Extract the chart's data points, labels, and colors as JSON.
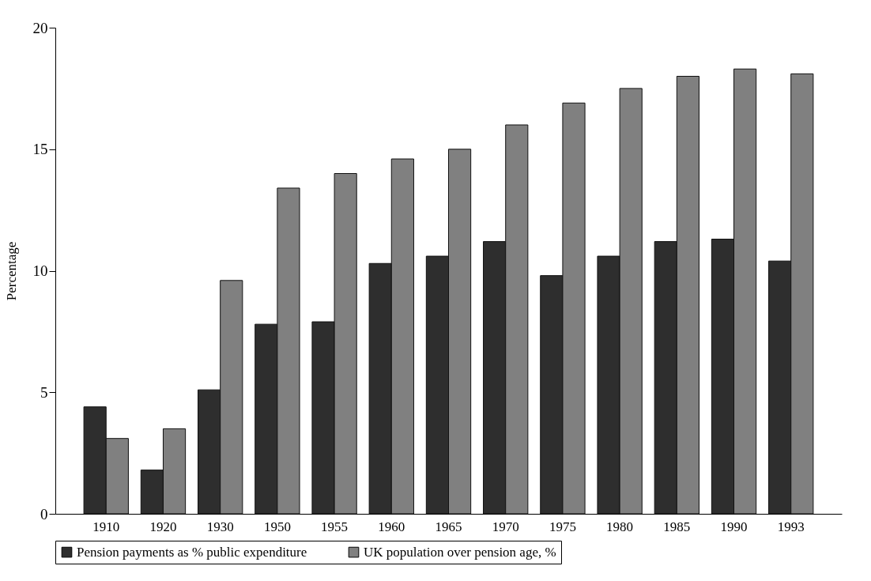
{
  "chart_data": {
    "type": "bar",
    "ylabel": "Percentage",
    "categories": [
      "1910",
      "1920",
      "1930",
      "1950",
      "1955",
      "1960",
      "1965",
      "1970",
      "1975",
      "1980",
      "1985",
      "1990",
      "1993"
    ],
    "series": [
      {
        "name": "Pension payments as % public expenditure",
        "color": "#2e2e2e",
        "values": [
          4.4,
          1.8,
          5.1,
          7.8,
          7.9,
          10.3,
          10.6,
          11.2,
          9.8,
          10.6,
          11.2,
          11.3,
          10.4
        ]
      },
      {
        "name": "UK population over pension age, %",
        "color": "#808080",
        "values": [
          3.1,
          3.5,
          9.6,
          13.4,
          14.0,
          14.6,
          15.0,
          16.0,
          16.9,
          17.5,
          18.0,
          18.3,
          18.1
        ]
      }
    ],
    "ylim": [
      0,
      20
    ],
    "yticks": [
      0,
      5,
      10,
      15,
      20
    ],
    "grid": false,
    "legend": "bottom"
  }
}
